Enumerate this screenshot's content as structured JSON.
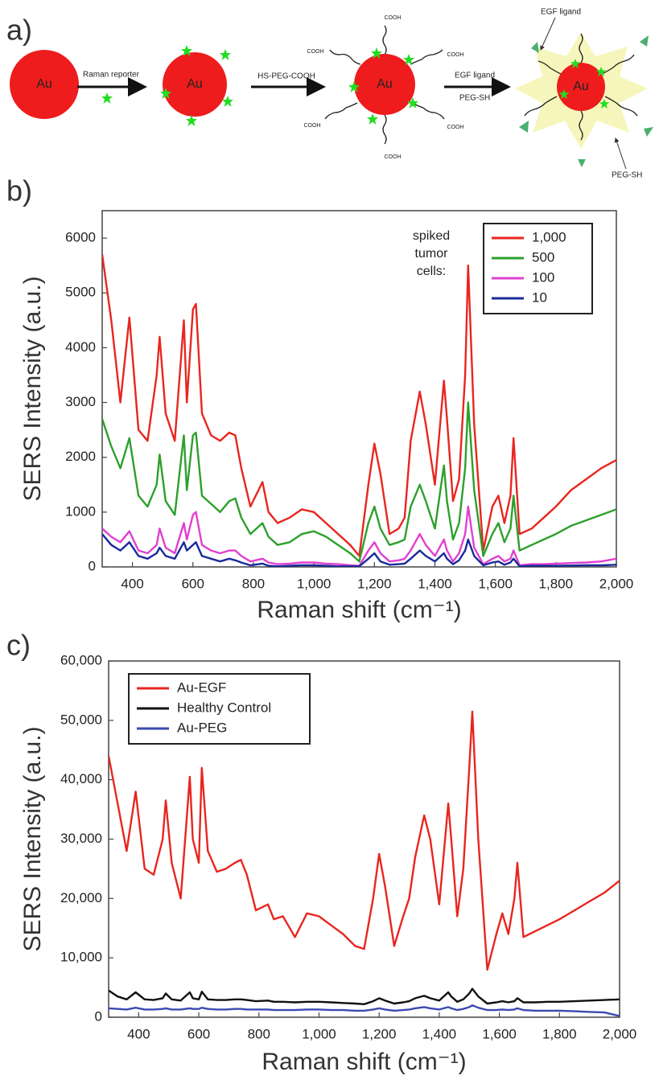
{
  "diagram": {
    "panel_label": "a)",
    "particle_labels": [
      "Au",
      "Au",
      "Au",
      "Au"
    ],
    "arrow_labels": [
      "Raman reporter",
      "HS-PEG-COOH",
      "EGF ligand",
      "PEG-SH"
    ],
    "cooh_labels": [
      "COOH",
      "COOH",
      "COOH",
      "COOH",
      "COOH",
      "COOH"
    ],
    "callouts": [
      "EGF ligand",
      "PEG-SH"
    ]
  },
  "chart_data": [
    {
      "type": "line",
      "panel_label": "b)",
      "x_label": "Raman shift (cm⁻¹)",
      "y_label": "SERS Intensity (a.u.)",
      "annotation_lines": [
        "spiked",
        "tumor",
        "cells:"
      ],
      "legend": "upper right",
      "xlim": [
        300,
        2000
      ],
      "ylim": [
        0,
        6500
      ],
      "xticks": [
        400,
        600,
        800,
        {
          "value": 1000,
          "label": "1,000"
        },
        {
          "value": 1200,
          "label": "1,200"
        },
        {
          "value": 1400,
          "label": "1,400"
        },
        {
          "value": 1600,
          "label": "1,600"
        },
        {
          "value": 1800,
          "label": "1,800"
        },
        {
          "value": 2000,
          "label": "2,000"
        }
      ],
      "yticks": [
        0,
        1000,
        2000,
        3000,
        4000,
        5000,
        6000
      ],
      "x": [
        300,
        330,
        360,
        390,
        420,
        450,
        480,
        490,
        510,
        540,
        570,
        580,
        600,
        610,
        630,
        660,
        690,
        720,
        740,
        760,
        790,
        830,
        850,
        880,
        920,
        960,
        1000,
        1040,
        1080,
        1120,
        1150,
        1180,
        1200,
        1220,
        1250,
        1280,
        1300,
        1320,
        1350,
        1370,
        1400,
        1430,
        1440,
        1460,
        1480,
        1500,
        1510,
        1530,
        1560,
        1590,
        1610,
        1630,
        1650,
        1660,
        1680,
        1720,
        1760,
        1800,
        1850,
        1900,
        1950,
        2000
      ],
      "series": [
        {
          "name": "1,000",
          "color": "#e8261f",
          "values": [
            5700,
            4500,
            3000,
            4550,
            2500,
            2300,
            3500,
            4200,
            2800,
            2300,
            4500,
            3000,
            4700,
            4800,
            2800,
            2400,
            2300,
            2450,
            2400,
            1800,
            1100,
            1550,
            1000,
            800,
            900,
            1050,
            1000,
            800,
            600,
            400,
            200,
            1500,
            2250,
            1700,
            600,
            700,
            900,
            2300,
            3200,
            2600,
            1500,
            3400,
            2700,
            1200,
            1600,
            3500,
            5500,
            2600,
            300,
            1100,
            1300,
            800,
            1300,
            2350,
            600,
            700,
            900,
            1100,
            1400,
            1600,
            1800,
            1950
          ]
        },
        {
          "name": "500",
          "color": "#2ca02c",
          "values": [
            2700,
            2200,
            1800,
            2350,
            1300,
            1100,
            1500,
            2050,
            1200,
            950,
            2400,
            1400,
            2400,
            2450,
            1300,
            1150,
            1000,
            1200,
            1250,
            900,
            600,
            800,
            550,
            400,
            450,
            600,
            650,
            550,
            400,
            250,
            100,
            800,
            1100,
            700,
            400,
            450,
            500,
            1100,
            1500,
            1200,
            700,
            1850,
            1200,
            500,
            800,
            1800,
            3000,
            1400,
            200,
            600,
            800,
            450,
            700,
            1300,
            300,
            400,
            500,
            600,
            750,
            850,
            950,
            1050
          ]
        },
        {
          "name": "100",
          "color": "#e040d0",
          "values": [
            700,
            550,
            450,
            650,
            300,
            250,
            400,
            700,
            350,
            250,
            800,
            500,
            950,
            1000,
            400,
            300,
            250,
            300,
            300,
            200,
            100,
            150,
            80,
            50,
            60,
            80,
            80,
            60,
            50,
            30,
            20,
            300,
            450,
            250,
            100,
            120,
            150,
            300,
            600,
            400,
            200,
            500,
            300,
            100,
            250,
            600,
            1100,
            350,
            50,
            150,
            200,
            100,
            150,
            300,
            30,
            50,
            50,
            60,
            70,
            80,
            100,
            150
          ]
        },
        {
          "name": "10",
          "color": "#1a2a9a",
          "values": [
            600,
            400,
            300,
            450,
            200,
            150,
            250,
            350,
            200,
            150,
            450,
            300,
            400,
            450,
            200,
            150,
            100,
            150,
            120,
            80,
            30,
            60,
            20,
            10,
            20,
            30,
            30,
            20,
            10,
            10,
            10,
            150,
            250,
            100,
            40,
            50,
            60,
            150,
            300,
            200,
            100,
            250,
            150,
            50,
            120,
            300,
            500,
            200,
            30,
            80,
            100,
            40,
            80,
            150,
            10,
            20,
            20,
            20,
            25,
            30,
            30,
            40
          ]
        }
      ]
    },
    {
      "type": "line",
      "panel_label": "c)",
      "x_label": "Raman shift (cm⁻¹)",
      "y_label": "SERS Intensity (a.u.)",
      "legend": "upper left",
      "xlim": [
        300,
        2000
      ],
      "ylim": [
        0,
        60000
      ],
      "xticks": [
        400,
        600,
        800,
        {
          "value": 1000,
          "label": "1,000"
        },
        {
          "value": 1200,
          "label": "1,200"
        },
        {
          "value": 1400,
          "label": "1,400"
        },
        {
          "value": 1600,
          "label": "1,600"
        },
        {
          "value": 1800,
          "label": "1,800"
        },
        {
          "value": 2000,
          "label": "2,000"
        }
      ],
      "yticks": [
        0,
        {
          "value": 10000,
          "label": "10,000"
        },
        {
          "value": 20000,
          "label": "20,000"
        },
        {
          "value": 30000,
          "label": "30,000"
        },
        {
          "value": 40000,
          "label": "40,000"
        },
        {
          "value": 50000,
          "label": "50,000"
        },
        {
          "value": 60000,
          "label": "60,000"
        }
      ],
      "x": [
        300,
        330,
        360,
        390,
        420,
        450,
        480,
        490,
        510,
        540,
        570,
        580,
        600,
        610,
        630,
        660,
        690,
        720,
        740,
        760,
        790,
        830,
        850,
        880,
        920,
        960,
        1000,
        1040,
        1080,
        1120,
        1150,
        1180,
        1200,
        1220,
        1250,
        1280,
        1300,
        1320,
        1350,
        1370,
        1400,
        1430,
        1440,
        1460,
        1480,
        1500,
        1510,
        1530,
        1560,
        1590,
        1610,
        1630,
        1650,
        1660,
        1680,
        1720,
        1760,
        1800,
        1850,
        1900,
        1950,
        2000
      ],
      "series": [
        {
          "name": "Au-EGF",
          "color": "#e8261f",
          "values": [
            44000,
            36000,
            28000,
            38000,
            25000,
            24000,
            30000,
            36500,
            26000,
            20000,
            40500,
            30000,
            26000,
            42000,
            28000,
            24500,
            25000,
            26000,
            26500,
            24000,
            18000,
            19000,
            16500,
            17000,
            13500,
            17500,
            17000,
            15500,
            14000,
            12000,
            11500,
            20000,
            27500,
            22000,
            12000,
            17000,
            20000,
            27000,
            34000,
            30000,
            19000,
            36000,
            30000,
            17000,
            25000,
            42000,
            51500,
            30000,
            8000,
            14000,
            17500,
            14000,
            20000,
            26000,
            13500,
            14500,
            15500,
            16500,
            18000,
            19500,
            21000,
            23000
          ]
        },
        {
          "name": "Healthy Control",
          "color": "#111111",
          "values": [
            4500,
            3500,
            3000,
            4200,
            3000,
            2900,
            3200,
            4000,
            3000,
            2800,
            4200,
            3200,
            3000,
            4300,
            3000,
            2900,
            2900,
            3000,
            3000,
            2900,
            2700,
            2800,
            2600,
            2600,
            2500,
            2600,
            2600,
            2500,
            2400,
            2300,
            2200,
            2700,
            3200,
            2800,
            2300,
            2500,
            2700,
            3200,
            3600,
            3200,
            2800,
            4200,
            3500,
            2600,
            3000,
            4000,
            4800,
            3500,
            2300,
            2500,
            2700,
            2500,
            2700,
            3200,
            2500,
            2500,
            2600,
            2600,
            2700,
            2800,
            2900,
            3000
          ]
        },
        {
          "name": "Au-PEG",
          "color": "#3a4ab0",
          "values": [
            1500,
            1400,
            1300,
            1600,
            1300,
            1300,
            1400,
            1500,
            1300,
            1300,
            1500,
            1400,
            1400,
            1600,
            1400,
            1300,
            1300,
            1400,
            1400,
            1300,
            1300,
            1300,
            1200,
            1200,
            1200,
            1300,
            1300,
            1200,
            1200,
            1100,
            1100,
            1300,
            1500,
            1300,
            1100,
            1200,
            1300,
            1500,
            1700,
            1500,
            1300,
            1700,
            1500,
            1200,
            1400,
            1700,
            2000,
            1600,
            1200,
            1200,
            1300,
            1200,
            1300,
            1500,
            1200,
            1100,
            1100,
            1100,
            1000,
            900,
            800,
            200
          ]
        }
      ]
    }
  ]
}
